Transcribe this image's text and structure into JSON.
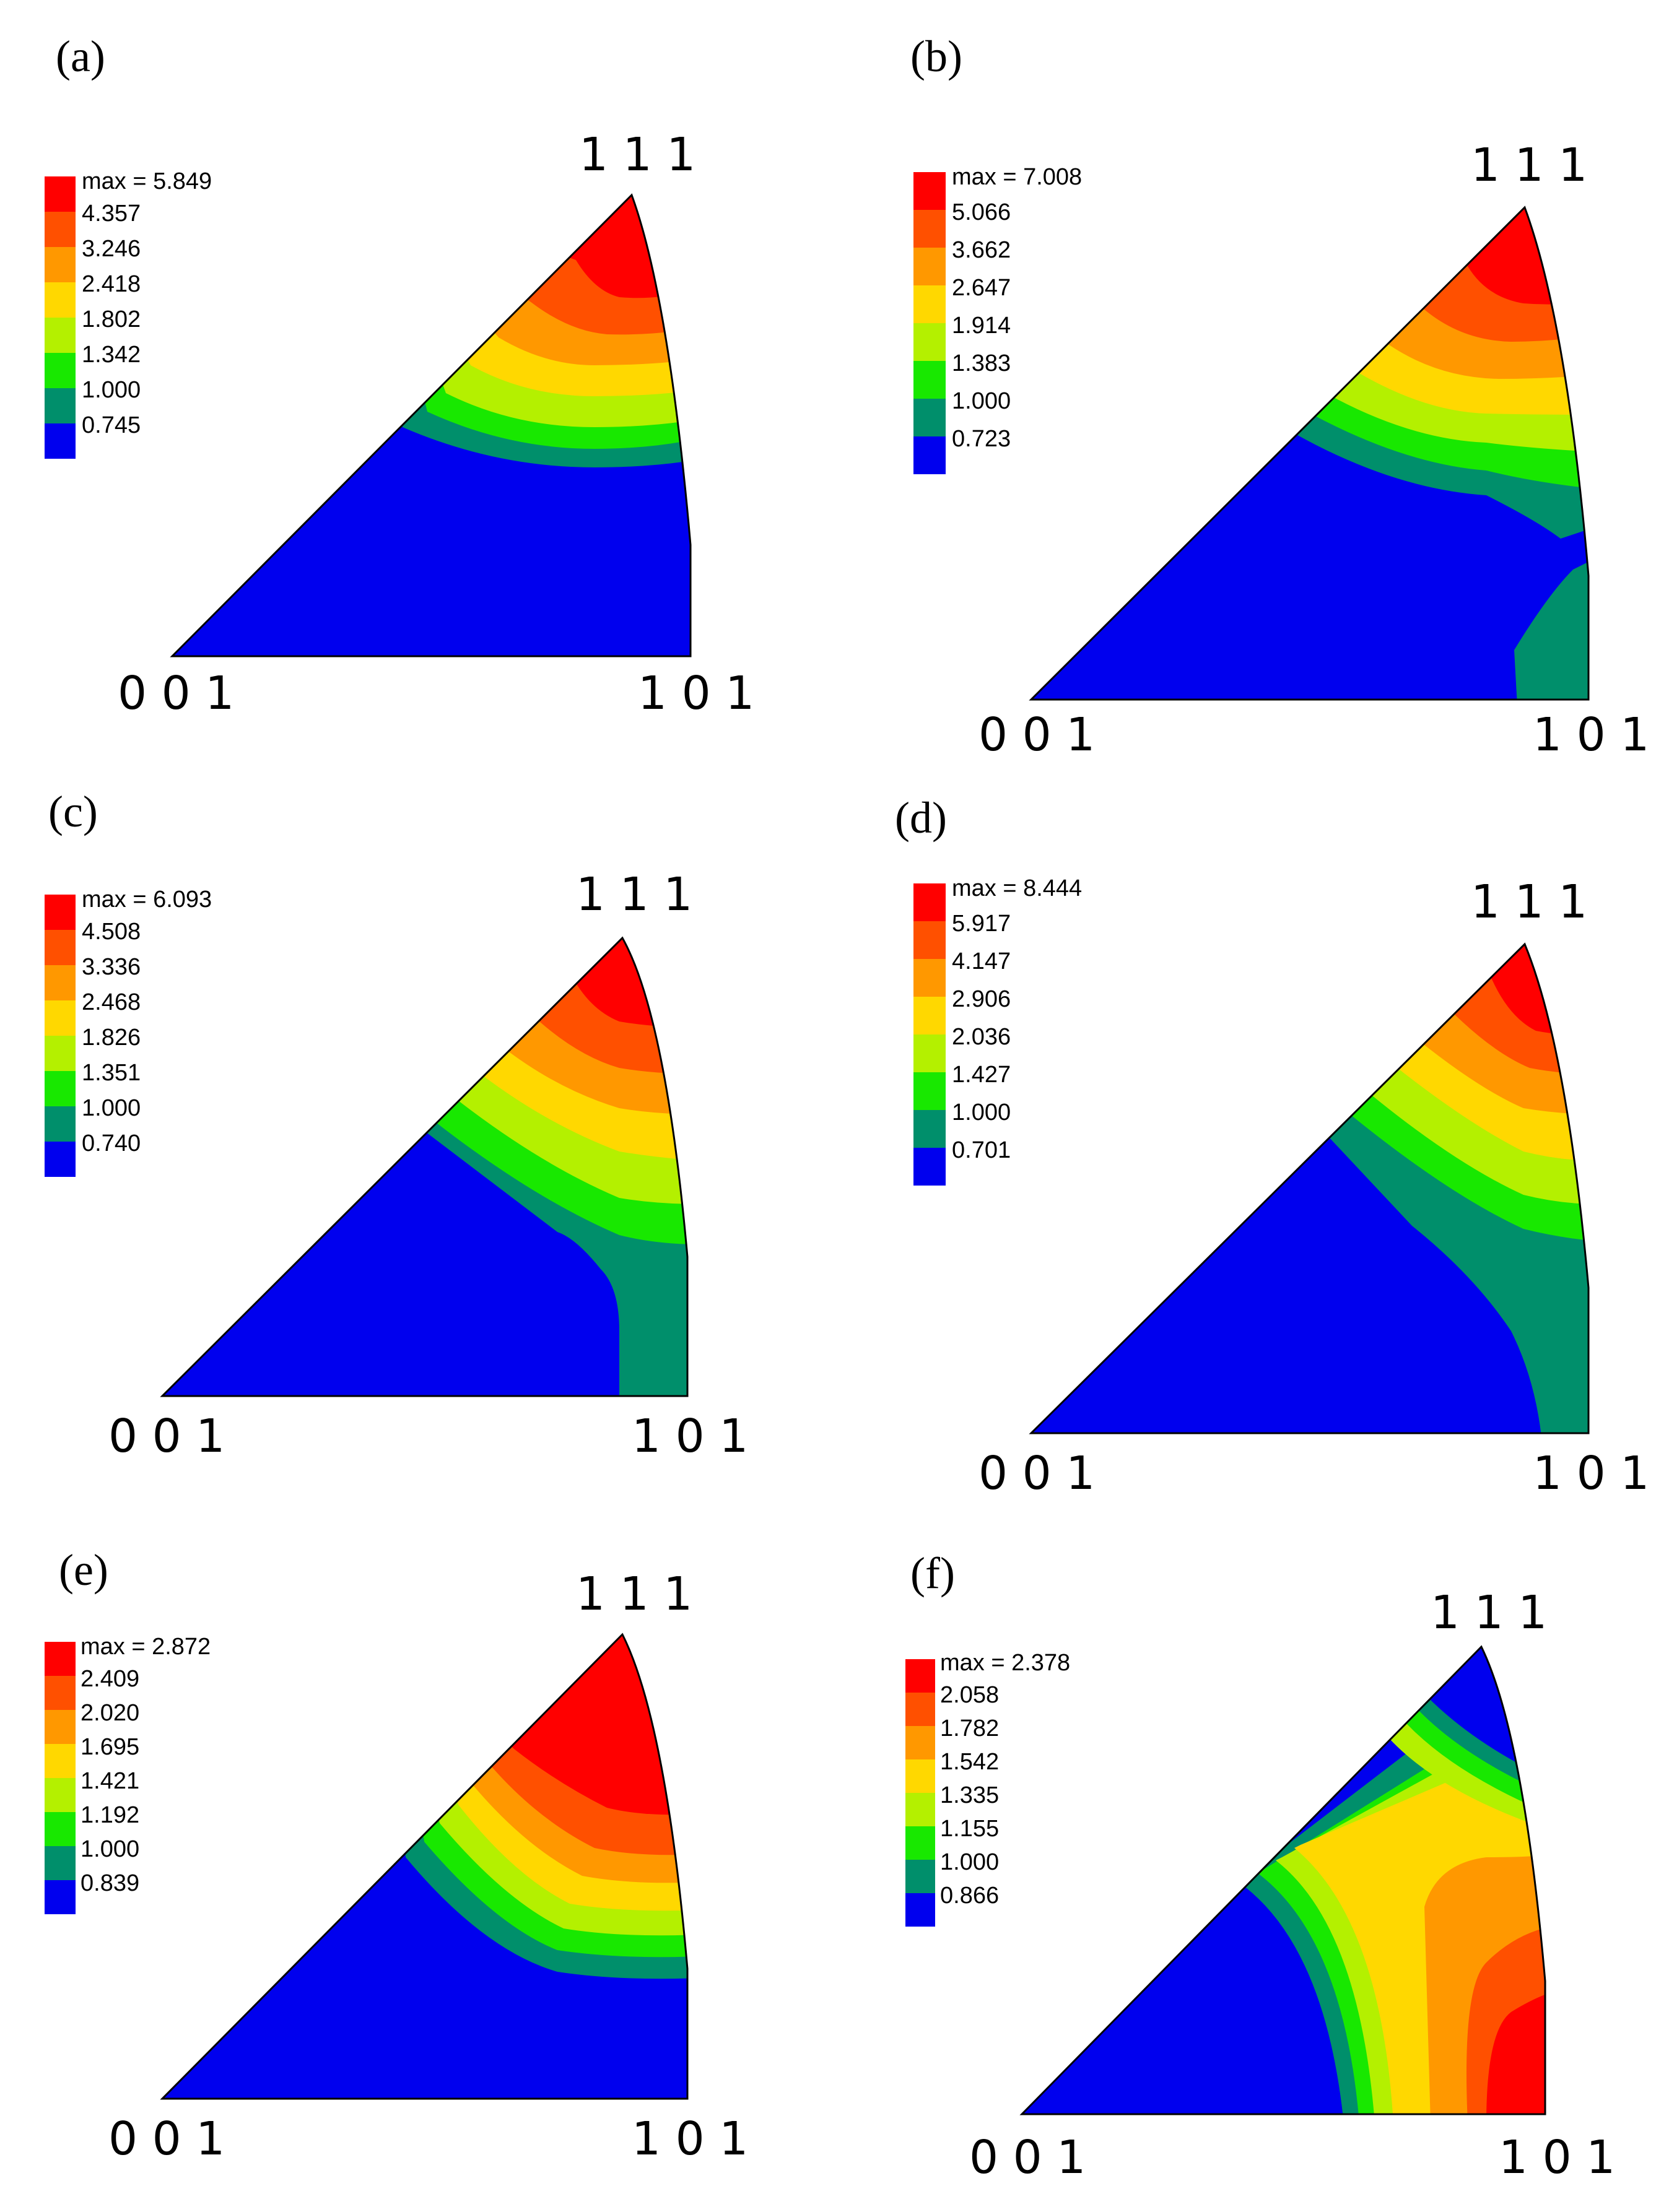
{
  "figure": {
    "colors": {
      "band0": "#0000ee",
      "band1": "#008f6b",
      "band2": "#18e800",
      "band3": "#b4f000",
      "band4": "#ffd800",
      "band5": "#ff9800",
      "band6": "#ff5000",
      "band7": "#ff0000"
    },
    "panels": [
      {
        "label": "(a)",
        "max_label": "max = 5.849",
        "levels": [
          "4.357",
          "3.246",
          "2.418",
          "1.802",
          "1.342",
          "1.000",
          "0.745"
        ],
        "pole_111": "1 1 1",
        "pole_001": "0 0 1",
        "pole_101": "1 0 1"
      },
      {
        "label": "(b)",
        "max_label": "max = 7.008",
        "levels": [
          "5.066",
          "3.662",
          "2.647",
          "1.914",
          "1.383",
          "1.000",
          "0.723"
        ],
        "pole_111": "1 1 1",
        "pole_001": "0 0 1",
        "pole_101": "1 0 1"
      },
      {
        "label": "(c)",
        "max_label": "max = 6.093",
        "levels": [
          "4.508",
          "3.336",
          "2.468",
          "1.826",
          "1.351",
          "1.000",
          "0.740"
        ],
        "pole_111": "1 1 1",
        "pole_001": "0 0 1",
        "pole_101": "1 0 1"
      },
      {
        "label": "(d)",
        "max_label": "max = 8.444",
        "levels": [
          "5.917",
          "4.147",
          "2.906",
          "2.036",
          "1.427",
          "1.000",
          "0.701"
        ],
        "pole_111": "1 1 1",
        "pole_001": "0 0 1",
        "pole_101": "1 0 1"
      },
      {
        "label": "(e)",
        "max_label": "max = 2.872",
        "levels": [
          "2.409",
          "2.020",
          "1.695",
          "1.421",
          "1.192",
          "1.000",
          "0.839"
        ],
        "pole_111": "1 1 1",
        "pole_001": "0 0 1",
        "pole_101": "1 0 1"
      },
      {
        "label": "(f)",
        "max_label": "max = 2.378",
        "levels": [
          "2.058",
          "1.782",
          "1.542",
          "1.335",
          "1.155",
          "1.000",
          "0.866"
        ],
        "pole_111": "1 1 1",
        "pole_001": "0 0 1",
        "pole_101": "1 0 1"
      }
    ]
  }
}
